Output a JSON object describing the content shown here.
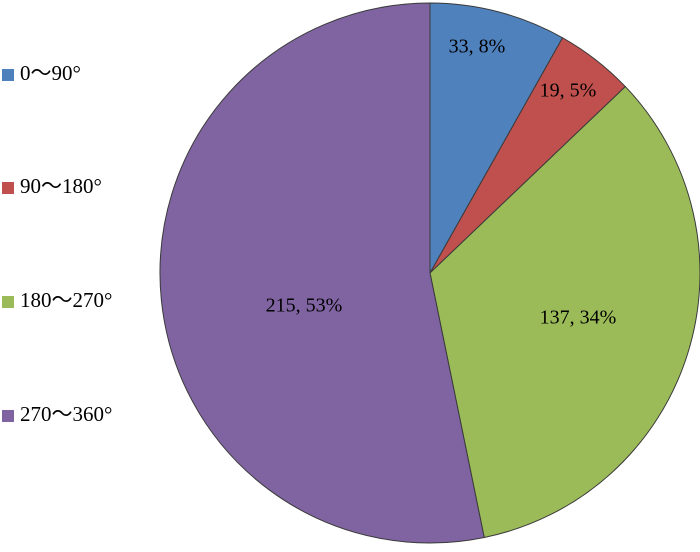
{
  "chart_data": {
    "type": "pie",
    "categories": [
      "0～90°",
      "90～180°",
      "180～270°",
      "270～360°"
    ],
    "values": [
      33,
      19,
      137,
      215
    ],
    "percentages": [
      8,
      5,
      34,
      53
    ],
    "data_labels": [
      "33, 8%",
      "19, 5%",
      "137, 34%",
      "215, 53%"
    ],
    "colors": [
      "#4F81BD",
      "#C0504D",
      "#9BBB59",
      "#8064A2"
    ],
    "legend_position": "left",
    "start_angle_deg": 0,
    "direction": "clockwise",
    "title": "",
    "xlabel": "",
    "ylabel": ""
  }
}
